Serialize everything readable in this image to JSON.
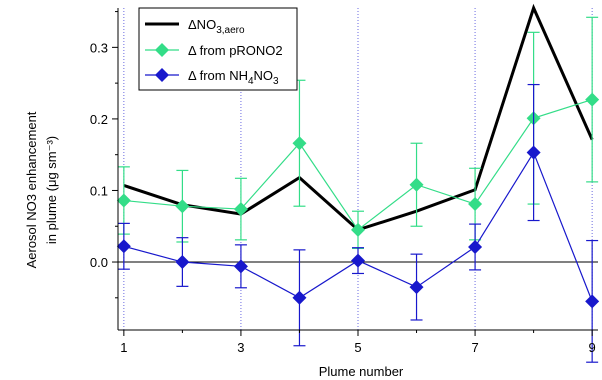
{
  "chart_data": {
    "type": "line",
    "xlabel": "Plume number",
    "ylabel_line1": "Aerosol NO3 enhancement",
    "ylabel_line2": "in plume (μg sm⁻³)",
    "x": [
      1,
      2,
      3,
      4,
      5,
      6,
      7,
      8,
      9
    ],
    "xlim": [
      0.9,
      9.1
    ],
    "ylim": [
      -0.095,
      0.355
    ],
    "xticks": [
      1,
      3,
      5,
      7,
      9
    ],
    "xticks_minor": [
      2,
      4,
      6,
      8
    ],
    "yticks": [
      0.0,
      0.1,
      0.2,
      0.3
    ],
    "ytick_labels": [
      "0.0",
      "0.1",
      "0.2",
      "0.3"
    ],
    "xtick_labels": [
      "1",
      "3",
      "5",
      "7",
      "9"
    ],
    "zero_line": true,
    "vertical_guides": [
      1,
      3,
      5,
      7,
      9
    ],
    "legend_position": "top-left",
    "series": [
      {
        "key": "aero",
        "name": "ΔNO3,aero",
        "color": "#000000",
        "marker": "none",
        "values": [
          0.107,
          0.08,
          0.067,
          0.118,
          0.045,
          0.071,
          0.101,
          0.355,
          0.171
        ]
      },
      {
        "key": "prono2",
        "name": "Δ from pRONO2",
        "color": "#33dd88",
        "marker": "diamond",
        "values": [
          0.086,
          0.078,
          0.074,
          0.166,
          0.045,
          0.108,
          0.081,
          0.201,
          0.227
        ],
        "errors": [
          0.047,
          0.05,
          0.043,
          0.088,
          0.026,
          0.058,
          0.05,
          0.12,
          0.115
        ]
      },
      {
        "key": "nh4no3",
        "name": "Δ from NH4NO3",
        "color": "#1818cc",
        "marker": "diamond",
        "values": [
          0.022,
          0.0,
          -0.006,
          -0.05,
          0.002,
          -0.035,
          0.021,
          0.153,
          -0.055
        ],
        "errors": [
          0.032,
          0.034,
          0.03,
          0.067,
          0.018,
          0.046,
          0.032,
          0.095,
          0.085
        ]
      }
    ],
    "legend": {
      "aero": {
        "prefix": "ΔNO",
        "sub1": "3,aero",
        "rest": ""
      },
      "prono2": {
        "prefix": "Δ from pRONO2",
        "sub1": "",
        "rest": ""
      },
      "nh4no3": {
        "prefix": "Δ from NH",
        "sub1": "4",
        "mid": "NO",
        "sub2": "3"
      }
    }
  }
}
